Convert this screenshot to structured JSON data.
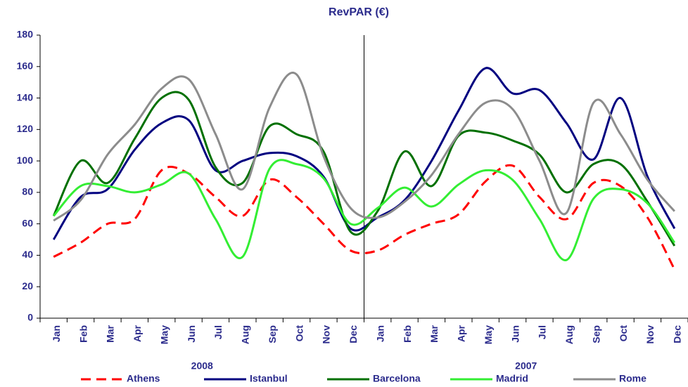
{
  "chart_data": {
    "type": "line",
    "title": "RevPAR (€)",
    "categories": [
      "Jan",
      "Feb",
      "Mar",
      "Apr",
      "May",
      "Jun",
      "Jul",
      "Aug",
      "Sep",
      "Oct",
      "Nov",
      "Dec",
      "Jan",
      "Feb",
      "Mar",
      "Apr",
      "May",
      "Jun",
      "Jul",
      "Aug",
      "Sep",
      "Oct",
      "Nov",
      "Dec"
    ],
    "x_groups": [
      "2008",
      "2007"
    ],
    "series": [
      {
        "name": "Athens",
        "color": "#ff0000",
        "dashed": true,
        "values": [
          39,
          48,
          60,
          63,
          94,
          92,
          77,
          65,
          88,
          77,
          60,
          43,
          43,
          53,
          60,
          66,
          87,
          97,
          77,
          63,
          86,
          84,
          64,
          31
        ]
      },
      {
        "name": "Istanbul",
        "color": "#000080",
        "values": [
          50,
          77,
          82,
          107,
          124,
          126,
          94,
          100,
          105,
          103,
          90,
          57,
          64,
          75,
          100,
          132,
          159,
          143,
          145,
          124,
          101,
          140,
          90,
          57
        ]
      },
      {
        "name": "Barcelona",
        "color": "#007000",
        "values": [
          65,
          100,
          86,
          114,
          140,
          139,
          96,
          86,
          122,
          117,
          106,
          55,
          68,
          106,
          84,
          116,
          118,
          113,
          104,
          80,
          98,
          98,
          74,
          46
        ]
      },
      {
        "name": "Madrid",
        "color": "#33ee33",
        "values": [
          65,
          84,
          84,
          80,
          85,
          92,
          63,
          39,
          95,
          98,
          89,
          60,
          70,
          83,
          71,
          85,
          94,
          88,
          63,
          37,
          76,
          82,
          73,
          48
        ]
      },
      {
        "name": "Rome",
        "color": "#8c8c8c",
        "values": [
          62,
          75,
          104,
          123,
          146,
          152,
          117,
          82,
          134,
          155,
          103,
          70,
          64,
          74,
          91,
          117,
          137,
          133,
          100,
          67,
          137,
          117,
          88,
          68
        ]
      }
    ],
    "ylim": [
      0,
      180
    ],
    "yticks": [
      0,
      20,
      40,
      60,
      80,
      100,
      120,
      140,
      160,
      180
    ],
    "grid": false
  }
}
